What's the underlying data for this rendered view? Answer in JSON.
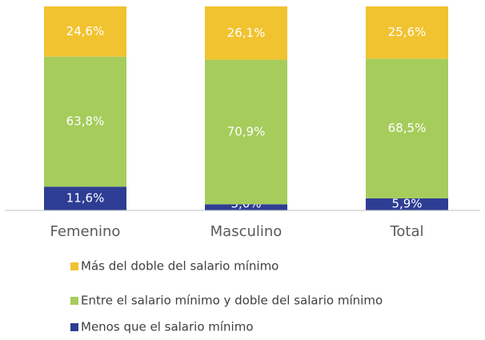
{
  "chart_data": {
    "type": "stacked_bar",
    "categories": [
      "Femenino",
      "Masculino",
      "Total"
    ],
    "series": [
      {
        "name": "Menos que el salario mínimo",
        "color": "#2e3d94",
        "values": [
          11.6,
          3.0,
          5.9
        ],
        "value_labels": [
          "11,6%",
          "3,0%",
          "5,9%"
        ]
      },
      {
        "name": "Entre el salario mínimo y doble del salario mínimo",
        "color": "#a6cc5c",
        "values": [
          63.8,
          70.9,
          68.5
        ],
        "value_labels": [
          "63,8%",
          "70,9%",
          "68,5%"
        ]
      },
      {
        "name": "Más del doble del salario mínimo",
        "color": "#f1c330",
        "values": [
          24.6,
          26.1,
          25.6
        ],
        "value_labels": [
          "24,6%",
          "26,1%",
          "25,6%"
        ]
      }
    ],
    "legend": "bottom"
  }
}
